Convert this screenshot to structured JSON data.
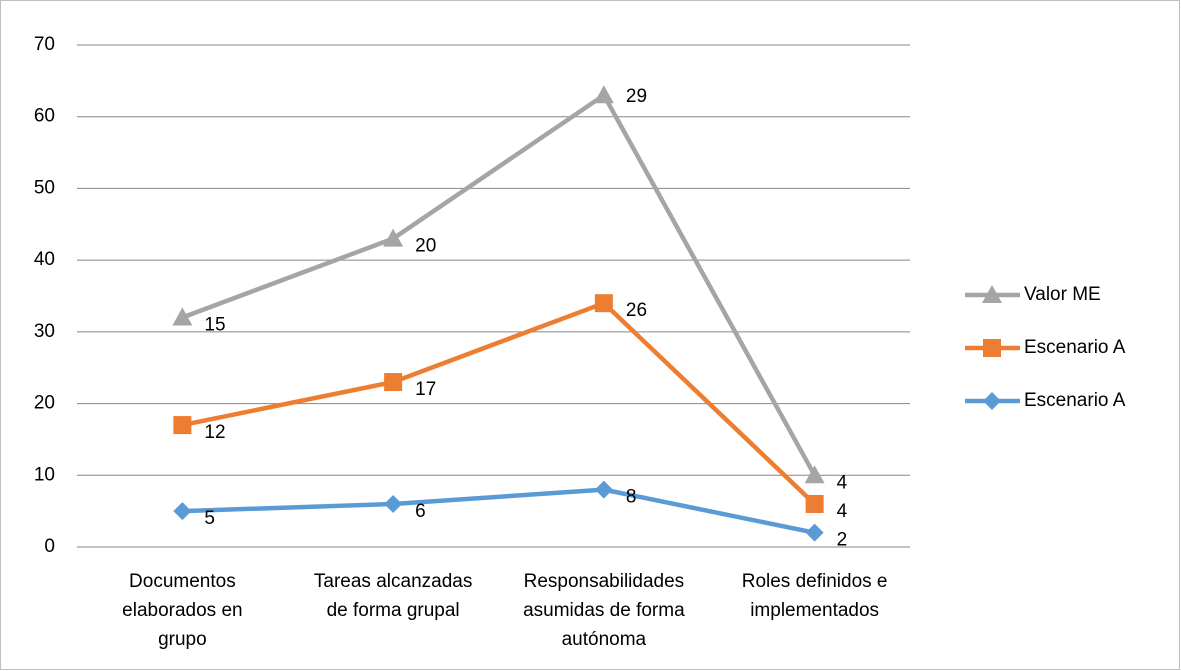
{
  "chart_data": {
    "type": "line",
    "stacked": true,
    "categories": [
      "Documentos elaborados en grupo",
      "Tareas alcanzadas de forma grupal",
      "Responsabilidades asumidas de forma autónoma",
      "Roles definidos e implementados"
    ],
    "series": [
      {
        "name": "Escenario A",
        "color": "#5b9bd5",
        "marker": "diamond",
        "values": [
          5,
          6,
          8,
          2
        ]
      },
      {
        "name": "Escenario A",
        "color": "#ed7d31",
        "marker": "square",
        "values": [
          12,
          17,
          26,
          4
        ]
      },
      {
        "name": "Valor ME",
        "color": "#a5a5a5",
        "marker": "triangle",
        "values": [
          15,
          20,
          29,
          4
        ]
      }
    ],
    "ylim": [
      0,
      70
    ],
    "yticks": [
      0,
      10,
      20,
      30,
      40,
      50,
      60,
      70
    ],
    "grid": true,
    "legend": "right"
  }
}
